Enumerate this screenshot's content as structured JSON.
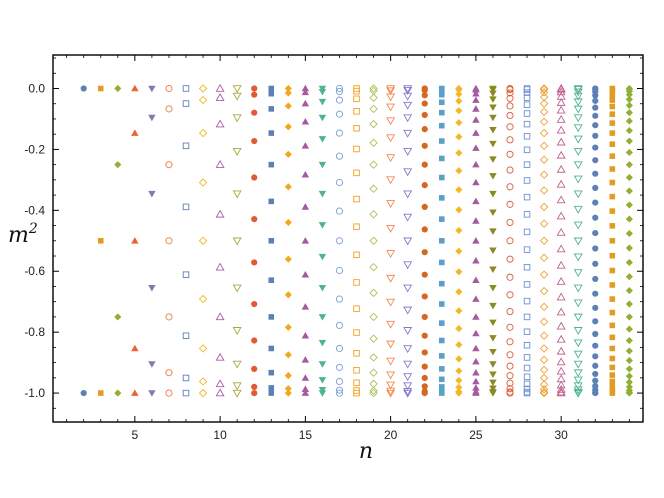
{
  "chart_data": {
    "type": "scatter",
    "title": "",
    "xlabel": "n",
    "ylabel": "m2",
    "xlim": [
      0.2,
      34.8
    ],
    "ylim": [
      -1.095,
      0.11
    ],
    "grid": false,
    "legend": "none",
    "x_ticks": [
      5,
      10,
      15,
      20,
      25,
      30
    ],
    "y_ticks": [
      0.0,
      -0.2,
      -0.4,
      -0.6,
      -0.8,
      -1.0
    ],
    "x_tick_labels": [
      "5",
      "10",
      "15",
      "20",
      "25",
      "30"
    ],
    "y_tick_labels": [
      "0.0",
      "-0.2",
      "-0.4",
      "-0.6",
      "-0.8",
      "-1.0"
    ],
    "series_rule": "for each n, points at m2 = -sin^2(pi*k/(2(n-1))), k = 0..n-1",
    "n_values": [
      2,
      3,
      4,
      5,
      6,
      7,
      8,
      9,
      10,
      11,
      12,
      13,
      14,
      15,
      16,
      17,
      18,
      19,
      20,
      21,
      22,
      23,
      24,
      25,
      26,
      27,
      28,
      29,
      30,
      31,
      32,
      33,
      34
    ],
    "series_style": [
      {
        "n": 2,
        "marker": "circle",
        "color": "#5e81b5",
        "filled": true
      },
      {
        "n": 3,
        "marker": "square",
        "color": "#e19c24",
        "filled": true
      },
      {
        "n": 4,
        "marker": "diamond",
        "color": "#8fb032",
        "filled": true
      },
      {
        "n": 5,
        "marker": "triangle-up",
        "color": "#eb6235",
        "filled": true
      },
      {
        "n": 6,
        "marker": "triangle-down",
        "color": "#8778b3",
        "filled": true
      },
      {
        "n": 7,
        "marker": "circle",
        "color": "#e8803a",
        "filled": false
      },
      {
        "n": 8,
        "marker": "square",
        "color": "#5e81b5",
        "filled": false
      },
      {
        "n": 9,
        "marker": "diamond",
        "color": "#f2b825",
        "filled": false
      },
      {
        "n": 10,
        "marker": "triangle-up",
        "color": "#a85ea6",
        "filled": false
      },
      {
        "n": 11,
        "marker": "triangle-down",
        "color": "#a8a83a",
        "filled": false
      },
      {
        "n": 12,
        "marker": "circle",
        "color": "#e05a35",
        "filled": true
      },
      {
        "n": 13,
        "marker": "square",
        "color": "#5e81b5",
        "filled": true
      },
      {
        "n": 14,
        "marker": "diamond",
        "color": "#f5a71c",
        "filled": true
      },
      {
        "n": 15,
        "marker": "triangle-up",
        "color": "#a459a0",
        "filled": true
      },
      {
        "n": 16,
        "marker": "triangle-down",
        "color": "#4fb48d",
        "filled": true
      },
      {
        "n": 17,
        "marker": "circle",
        "color": "#7f9fd4",
        "filled": false
      },
      {
        "n": 18,
        "marker": "square",
        "color": "#f0a020",
        "filled": false
      },
      {
        "n": 19,
        "marker": "diamond",
        "color": "#a8c45a",
        "filled": false
      },
      {
        "n": 20,
        "marker": "triangle-down",
        "color": "#f08a50",
        "filled": false
      },
      {
        "n": 21,
        "marker": "triangle-down",
        "color": "#8877c8",
        "filled": false
      },
      {
        "n": 22,
        "marker": "circle",
        "color": "#d2691e",
        "filled": true
      },
      {
        "n": 23,
        "marker": "square",
        "color": "#5aa0c8",
        "filled": true
      },
      {
        "n": 24,
        "marker": "diamond",
        "color": "#f2b825",
        "filled": true
      },
      {
        "n": 25,
        "marker": "triangle-up",
        "color": "#a459a0",
        "filled": true
      },
      {
        "n": 26,
        "marker": "triangle-down",
        "color": "#8a8a1e",
        "filled": true
      },
      {
        "n": 27,
        "marker": "circle",
        "color": "#e05a35",
        "filled": false
      },
      {
        "n": 28,
        "marker": "square",
        "color": "#6f8fd0",
        "filled": false
      },
      {
        "n": 29,
        "marker": "diamond",
        "color": "#f0a035",
        "filled": false
      },
      {
        "n": 30,
        "marker": "triangle-up",
        "color": "#c06090",
        "filled": false
      },
      {
        "n": 31,
        "marker": "triangle-down",
        "color": "#4fb48d",
        "filled": false
      },
      {
        "n": 32,
        "marker": "circle",
        "color": "#5e81b5",
        "filled": true
      },
      {
        "n": 33,
        "marker": "square",
        "color": "#e19c24",
        "filled": true
      },
      {
        "n": 34,
        "marker": "diamond",
        "color": "#8fb032",
        "filled": true
      }
    ]
  }
}
